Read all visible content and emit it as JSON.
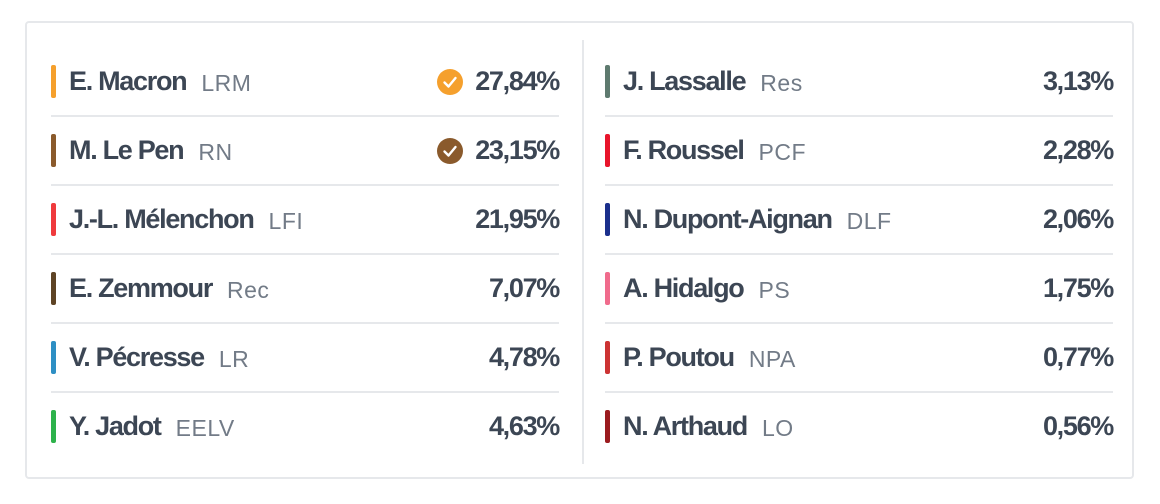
{
  "results": {
    "left": [
      {
        "name": "E. Macron",
        "party": "LRM",
        "percent": "27,84%",
        "color": "#f5a02d",
        "qualified": true,
        "check_color": "#f5a02d"
      },
      {
        "name": "M. Le Pen",
        "party": "RN",
        "percent": "23,15%",
        "color": "#8a5a2c",
        "qualified": true,
        "check_color": "#8a5a2c"
      },
      {
        "name": "J.-L. Mélenchon",
        "party": "LFI",
        "percent": "21,95%",
        "color": "#ef3a3d",
        "qualified": false
      },
      {
        "name": "E. Zemmour",
        "party": "Rec",
        "percent": "7,07%",
        "color": "#5e4425",
        "qualified": false
      },
      {
        "name": "V. Pécresse",
        "party": "LR",
        "percent": "4,78%",
        "color": "#2e8fc4",
        "qualified": false
      },
      {
        "name": "Y. Jadot",
        "party": "EELV",
        "percent": "4,63%",
        "color": "#2db24b",
        "qualified": false
      }
    ],
    "right": [
      {
        "name": "J. Lassalle",
        "party": "Res",
        "percent": "3,13%",
        "color": "#5e7a6f",
        "qualified": false
      },
      {
        "name": "F. Roussel",
        "party": "PCF",
        "percent": "2,28%",
        "color": "#e8142b",
        "qualified": false
      },
      {
        "name": "N. Dupont-Aignan",
        "party": "DLF",
        "percent": "2,06%",
        "color": "#1b2f8c",
        "qualified": false
      },
      {
        "name": "A. Hidalgo",
        "party": "PS",
        "percent": "1,75%",
        "color": "#f06b8c",
        "qualified": false
      },
      {
        "name": "P. Poutou",
        "party": "NPA",
        "percent": "0,77%",
        "color": "#cc3333",
        "qualified": false
      },
      {
        "name": "N. Arthaud",
        "party": "LO",
        "percent": "0,56%",
        "color": "#9b1b1f",
        "qualified": false
      }
    ]
  },
  "icons": {
    "qualified": "check-circle-icon"
  }
}
